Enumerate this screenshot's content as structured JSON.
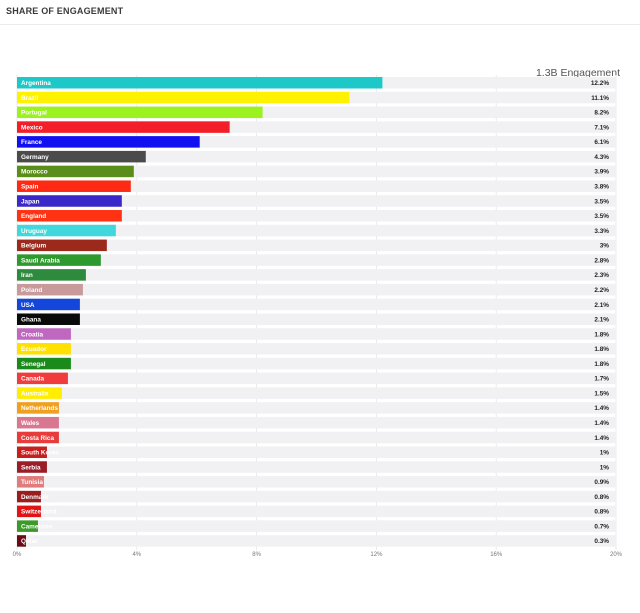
{
  "header": {
    "title": "SHARE OF ENGAGEMENT"
  },
  "summary": {
    "total_label": "1.3B Engagement"
  },
  "chart_data": {
    "type": "bar",
    "orientation": "horizontal",
    "title": "SHARE OF ENGAGEMENT",
    "xlim": [
      0,
      20
    ],
    "x_ticks": [
      "0%",
      "4%",
      "8%",
      "12%",
      "16%",
      "20%"
    ],
    "x_tick_values": [
      0,
      4,
      8,
      12,
      16,
      20
    ],
    "grid": true,
    "categories": [
      "Argentina",
      "Brazil",
      "Portugal",
      "Mexico",
      "France",
      "Germany",
      "Morocco",
      "Spain",
      "Japan",
      "England",
      "Uruguay",
      "Belgium",
      "Saudi Arabia",
      "Iran",
      "Poland",
      "USA",
      "Ghana",
      "Croatia",
      "Ecuador",
      "Senegal",
      "Canada",
      "Australia",
      "Netherlands",
      "Wales",
      "Costa Rica",
      "South Korea",
      "Serbia",
      "Tunisia",
      "Denmark",
      "Switzerland",
      "Cameroon",
      "Qatar"
    ],
    "values": [
      12.2,
      11.1,
      8.2,
      7.1,
      6.1,
      4.3,
      3.9,
      3.8,
      3.5,
      3.5,
      3.3,
      3.0,
      2.8,
      2.3,
      2.2,
      2.1,
      2.1,
      1.8,
      1.8,
      1.8,
      1.7,
      1.5,
      1.4,
      1.4,
      1.4,
      1.0,
      1.0,
      0.9,
      0.8,
      0.8,
      0.7,
      0.3
    ],
    "value_labels": [
      "12.2%",
      "11.1%",
      "8.2%",
      "7.1%",
      "6.1%",
      "4.3%",
      "3.9%",
      "3.8%",
      "3.5%",
      "3.5%",
      "3.3%",
      "3%",
      "2.8%",
      "2.3%",
      "2.2%",
      "2.1%",
      "2.1%",
      "1.8%",
      "1.8%",
      "1.8%",
      "1.7%",
      "1.5%",
      "1.4%",
      "1.4%",
      "1.4%",
      "1%",
      "1%",
      "0.9%",
      "0.8%",
      "0.8%",
      "0.7%",
      "0.3%"
    ],
    "colors": [
      "#1ec8c8",
      "#fff200",
      "#9cf21e",
      "#f21e28",
      "#1010f0",
      "#4b4b4b",
      "#5a8e1a",
      "#ff2a14",
      "#3c28c8",
      "#ff3214",
      "#40d8dc",
      "#9c2a1c",
      "#2e9a2e",
      "#2e8a3c",
      "#c89a9a",
      "#1446dc",
      "#0a0a0a",
      "#c068c0",
      "#ffe000",
      "#1a8a1a",
      "#f03c3c",
      "#ffee00",
      "#f0a020",
      "#d87890",
      "#e83c3c",
      "#c81e1e",
      "#9a1e28",
      "#e07c7c",
      "#9a1e1e",
      "#e01414",
      "#3c9a28",
      "#6a0a14"
    ]
  }
}
